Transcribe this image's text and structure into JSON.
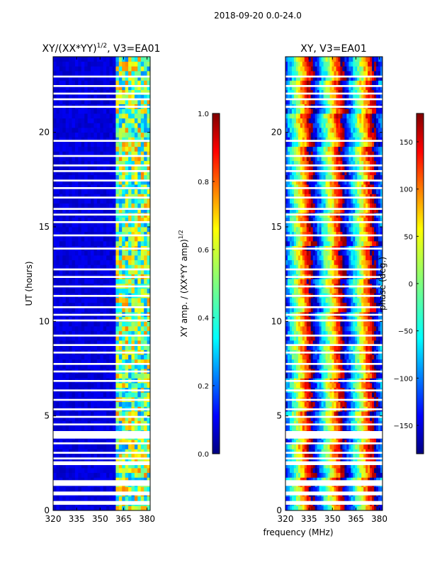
{
  "figure_title": "2018-09-20 0.0-24.0",
  "shared_xlabel": "frequency (MHz)",
  "chart_data": [
    {
      "type": "heatmap",
      "title": "XY/(XX*YY)",
      "title_exp": "1/2",
      "title_suffix": ", V3=EA01",
      "xlabel": "",
      "ylabel": "UT (hours)",
      "xlim": [
        320,
        382
      ],
      "ylim": [
        0,
        24
      ],
      "xticks": [
        320,
        335,
        350,
        365,
        380
      ],
      "yticks": [
        0,
        5,
        10,
        15,
        20
      ],
      "band_start_mhz": 360,
      "colorbar": {
        "label": "XY amp. / (XX*YY amp)",
        "label_exp": "1/2",
        "range": [
          0.0,
          1.0
        ],
        "ticks": [
          "0.0",
          "0.2",
          "0.4",
          "0.6",
          "0.8",
          "1.0"
        ],
        "colormap": "jet"
      }
    },
    {
      "type": "heatmap",
      "title": "XY, V3=EA01",
      "xlabel": "",
      "ylabel": "",
      "xlim": [
        320,
        382
      ],
      "ylim": [
        0,
        24
      ],
      "xticks": [
        320,
        335,
        350,
        365,
        380
      ],
      "yticks": [
        0,
        5,
        10,
        15,
        20
      ],
      "colorbar": {
        "label": "phase (deg.)",
        "range": [
          -180,
          180
        ],
        "ticks": [
          "150",
          "100",
          "50",
          "0",
          "−50",
          "−100",
          "−150"
        ],
        "tick_values": [
          150,
          100,
          50,
          0,
          -50,
          -100,
          -150
        ],
        "colormap": "jet"
      }
    }
  ],
  "flagged_gaps_ut_hours": [
    [
      0.3,
      0.5
    ],
    [
      0.8,
      1.0
    ],
    [
      1.3,
      1.6
    ],
    [
      2.4,
      2.6
    ],
    [
      2.7,
      2.8
    ],
    [
      3.0,
      3.1
    ],
    [
      3.5,
      3.6
    ],
    [
      3.8,
      4.2
    ],
    [
      4.5,
      4.6
    ],
    [
      4.9,
      5.0
    ],
    [
      5.3,
      5.4
    ],
    [
      5.8,
      5.9
    ],
    [
      6.3,
      6.4
    ],
    [
      6.8,
      6.9
    ],
    [
      7.3,
      7.4
    ],
    [
      7.7,
      7.8
    ],
    [
      8.3,
      8.4
    ],
    [
      8.7,
      8.8
    ],
    [
      9.2,
      9.3
    ],
    [
      10.0,
      10.1
    ],
    [
      10.3,
      10.4
    ],
    [
      10.7,
      10.8
    ],
    [
      11.3,
      11.4
    ],
    [
      11.8,
      11.9
    ],
    [
      12.3,
      12.4
    ],
    [
      12.7,
      12.8
    ],
    [
      13.8,
      13.9
    ],
    [
      14.5,
      14.6
    ],
    [
      15.2,
      15.3
    ],
    [
      15.6,
      15.7
    ],
    [
      15.9,
      16.0
    ],
    [
      16.5,
      16.6
    ],
    [
      17.0,
      17.1
    ],
    [
      17.4,
      17.5
    ],
    [
      17.9,
      18.0
    ],
    [
      18.2,
      18.3
    ],
    [
      18.7,
      18.8
    ],
    [
      19.5,
      19.6
    ],
    [
      21.3,
      21.4
    ],
    [
      21.7,
      21.8
    ],
    [
      22.0,
      22.1
    ],
    [
      22.4,
      22.5
    ],
    [
      22.9,
      23.0
    ]
  ]
}
